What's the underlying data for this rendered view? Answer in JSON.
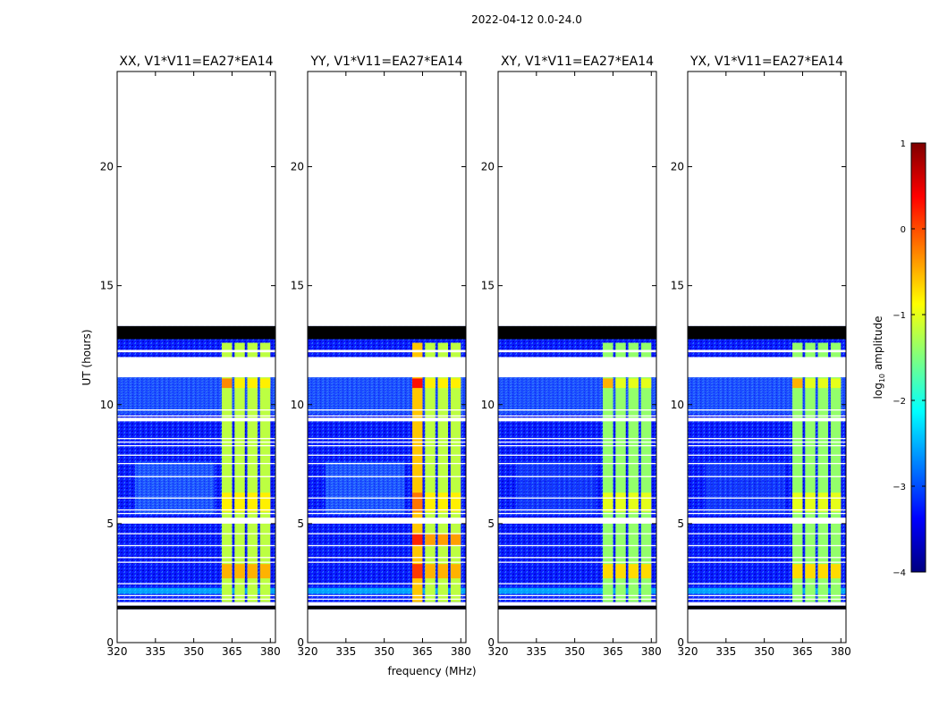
{
  "figure": {
    "suptitle": "2022-04-12 0.0-24.0",
    "xlabel": "frequency (MHz)",
    "ylabel": "UT (hours)"
  },
  "colorbar": {
    "label_prefix": "log",
    "label_sub": "10",
    "label_suffix": " amplitude",
    "range": [
      -4,
      1
    ],
    "ticks": [
      1,
      0,
      -1,
      -2,
      -3,
      -4
    ],
    "colormap": "jet",
    "colors": [
      "#00007f",
      "#0000ff",
      "#007fff",
      "#00ffff",
      "#7fff7f",
      "#ffff00",
      "#ff7f00",
      "#ff0000",
      "#7f0000"
    ]
  },
  "chart_data": {
    "type": "heatmap",
    "x_range": [
      320,
      382
    ],
    "y_range": [
      0,
      24
    ],
    "x_ticks": [
      320,
      335,
      350,
      365,
      380
    ],
    "y_ticks": [
      0,
      5,
      10,
      15,
      20
    ],
    "panels": [
      {
        "title": "XX, V1*V11=EA27*EA14",
        "polarization": "XX"
      },
      {
        "title": "YY, V1*V11=EA27*EA14",
        "polarization": "YY"
      },
      {
        "title": "XY, V1*V11=EA27*EA14",
        "polarization": "XY"
      },
      {
        "title": "YX, V1*V11=EA27*EA14",
        "polarization": "YX"
      }
    ],
    "data_time_range_hours": [
      1.4,
      13.3
    ],
    "flagged_black_hours": [
      [
        12.75,
        13.3
      ],
      [
        1.4,
        1.55
      ]
    ],
    "gap_hours": [
      [
        11.15,
        12.0
      ],
      [
        12.2,
        12.3
      ],
      [
        1.55,
        1.7
      ],
      [
        5.0,
        5.25
      ],
      [
        9.3,
        9.45
      ]
    ],
    "background_log_amplitude": -3.2,
    "rfi_bands_mhz": [
      [
        361,
        365
      ],
      [
        366,
        370
      ],
      [
        371,
        375
      ],
      [
        376,
        380
      ]
    ],
    "rfi_log_amplitude": -1.2,
    "rfi_time_range_hours": [
      1.7,
      12.6
    ]
  }
}
